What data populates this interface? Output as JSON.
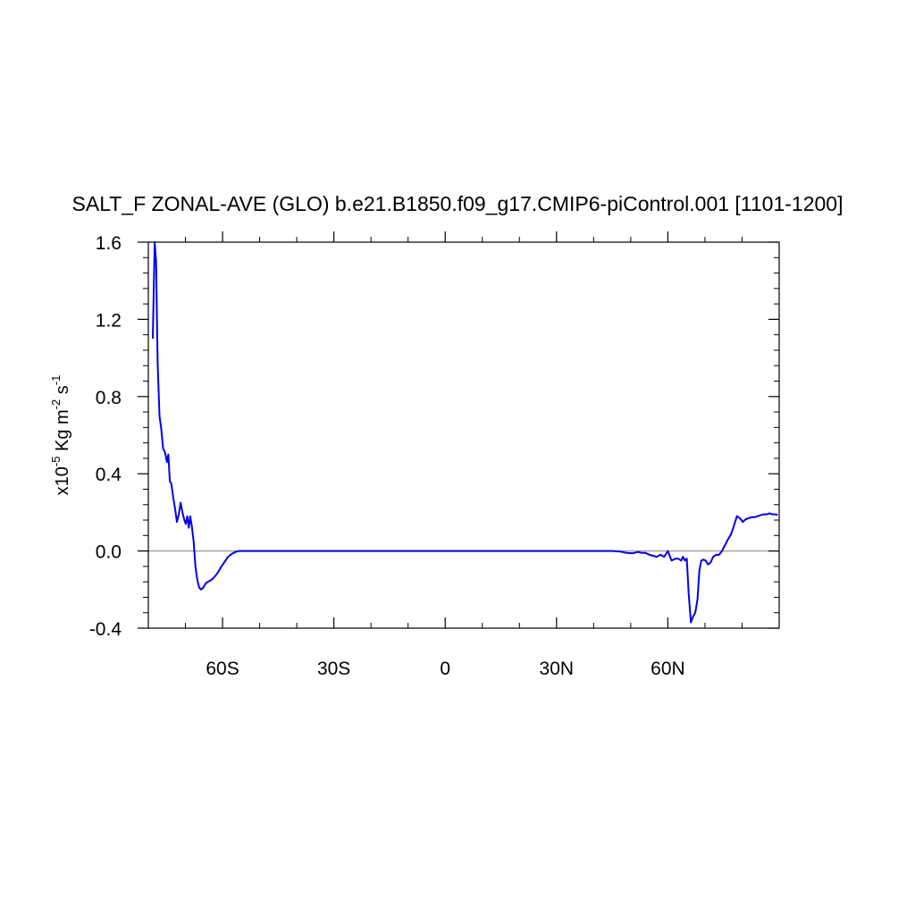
{
  "chart_data": {
    "type": "line",
    "title": "SALT_F ZONAL-AVE (GLO) b.e21.B1850.f09_g17.CMIP6-piControl.001 [1101-1200]",
    "ylabel": {
      "scale_base": "x10",
      "scale_exp": "-5",
      "unit_1": " Kg m",
      "unit_1_exp": "-2",
      "unit_2": " s",
      "unit_2_exp": "-1"
    },
    "xlim": [
      -80,
      90
    ],
    "ylim": [
      -0.4,
      1.6
    ],
    "x_ticks": [
      {
        "value": -60,
        "label": "60S"
      },
      {
        "value": -30,
        "label": "30S"
      },
      {
        "value": 0,
        "label": "0"
      },
      {
        "value": 30,
        "label": "30N"
      },
      {
        "value": 60,
        "label": "60N"
      }
    ],
    "y_ticks": [
      {
        "value": -0.4,
        "label": "-0.4"
      },
      {
        "value": 0.0,
        "label": "0.0"
      },
      {
        "value": 0.4,
        "label": "0.4"
      },
      {
        "value": 0.8,
        "label": "0.8"
      },
      {
        "value": 1.2,
        "label": "1.2"
      },
      {
        "value": 1.6,
        "label": "1.6"
      }
    ],
    "reference_line": 0.0,
    "colors": {
      "series": "#0000ee",
      "reference": "#9a9a9a",
      "axis": "#000000"
    },
    "series": [
      {
        "x": [
          -78.8,
          -78.3,
          -77.9,
          -77.5,
          -77.0,
          -76.5,
          -76.0,
          -75.5,
          -75.0,
          -74.6,
          -74.2,
          -73.8,
          -73.3,
          -72.8,
          -72.3,
          -71.8,
          -71.3,
          -70.8,
          -70.3,
          -69.9,
          -69.5,
          -69.1,
          -68.7,
          -68.3,
          -67.8,
          -67.3,
          -66.8,
          -66.3,
          -65.8,
          -65.2,
          -64.6,
          -64.0,
          -63.4,
          -62.7,
          -62.0,
          -61.2,
          -60.3,
          -59.4,
          -58.5,
          -57.5,
          -56.5,
          -55.5,
          -54.5,
          -53.5,
          -52.5,
          -51.5,
          -50.5,
          -48.0,
          -40.0,
          -30.0,
          -20.0,
          -10.0,
          0.0,
          10.0,
          20.0,
          30.0,
          40.0,
          45.0,
          47.0,
          49.0,
          50.5,
          52.0,
          53.0,
          54.0,
          55.0,
          56.0,
          57.0,
          58.0,
          59.0,
          60.0,
          61.0,
          62.0,
          62.8,
          63.6,
          64.1,
          64.6,
          65.1,
          65.6,
          66.2,
          66.8,
          67.4,
          68.0,
          68.5,
          69.0,
          69.6,
          70.2,
          70.8,
          71.5,
          72.2,
          73.0,
          73.8,
          74.6,
          75.4,
          76.2,
          77.0,
          77.8,
          78.6,
          79.4,
          80.2,
          81.0,
          81.8,
          82.6,
          83.4,
          84.2,
          85.0,
          85.8,
          86.6,
          87.4,
          88.2,
          89.0,
          89.6
        ],
        "y": [
          1.1,
          1.6,
          1.5,
          0.98,
          0.7,
          0.63,
          0.53,
          0.51,
          0.46,
          0.5,
          0.36,
          0.35,
          0.28,
          0.22,
          0.15,
          0.19,
          0.25,
          0.2,
          0.16,
          0.14,
          0.18,
          0.12,
          0.18,
          0.13,
          0.05,
          -0.08,
          -0.15,
          -0.19,
          -0.2,
          -0.19,
          -0.17,
          -0.16,
          -0.155,
          -0.145,
          -0.13,
          -0.11,
          -0.08,
          -0.055,
          -0.03,
          -0.015,
          -0.005,
          0.0,
          0.0,
          0.0,
          0.0,
          0.0,
          0.0,
          0.0,
          0.0,
          0.0,
          0.0,
          0.0,
          0.0,
          0.0,
          0.0,
          0.0,
          0.0,
          0.0,
          -0.003,
          -0.01,
          -0.012,
          -0.005,
          -0.01,
          -0.01,
          -0.02,
          -0.025,
          -0.03,
          -0.02,
          -0.03,
          0.0,
          -0.05,
          -0.04,
          -0.04,
          -0.05,
          -0.03,
          -0.05,
          -0.04,
          -0.22,
          -0.37,
          -0.34,
          -0.32,
          -0.25,
          -0.1,
          -0.05,
          -0.045,
          -0.05,
          -0.07,
          -0.06,
          -0.03,
          -0.02,
          -0.02,
          0.0,
          0.03,
          0.06,
          0.085,
          0.13,
          0.18,
          0.17,
          0.15,
          0.165,
          0.17,
          0.175,
          0.175,
          0.18,
          0.185,
          0.19,
          0.19,
          0.195,
          0.19,
          0.19,
          0.185
        ]
      }
    ]
  }
}
